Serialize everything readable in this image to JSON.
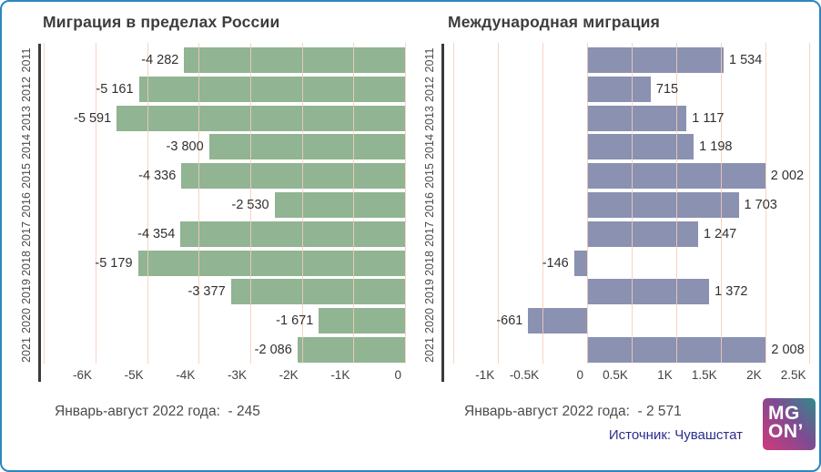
{
  "style": {
    "background": "#ffffff",
    "border_color": "#2e86c1",
    "grid_color": "#f6cdb9",
    "axis_spine_color": "#3a3a3a"
  },
  "chart_data": [
    {
      "type": "bar",
      "orientation": "horizontal",
      "title": "Миграция в пределах России",
      "categories": [
        "2011",
        "2012",
        "2013",
        "2014",
        "2015",
        "2016",
        "2017",
        "2018",
        "2019",
        "2020",
        "2021"
      ],
      "values": [
        -4282,
        -5161,
        -5591,
        -3800,
        -4336,
        -2530,
        -4354,
        -5179,
        -3377,
        -1671,
        -2086
      ],
      "value_labels": [
        "-4 282",
        "-5 161",
        "-5 591",
        "-3 800",
        "-4 336",
        "-2 530",
        "-4 354",
        "-5 179",
        "-3 377",
        "-1 671",
        "-2 086"
      ],
      "bar_color": "#91b492",
      "xlim": [
        -7059,
        0
      ],
      "grid": true,
      "ticks": [
        {
          "v": -7000,
          "label": ""
        },
        {
          "v": -6000,
          "label": "-6K"
        },
        {
          "v": -5000,
          "label": "-5K"
        },
        {
          "v": -4000,
          "label": "-4K"
        },
        {
          "v": -3000,
          "label": "-3K"
        },
        {
          "v": -2000,
          "label": "-2K"
        },
        {
          "v": -1000,
          "label": "-1K"
        },
        {
          "v": 0,
          "label": "0"
        }
      ],
      "caption": "Январь-август 2022 года:  - 245"
    },
    {
      "type": "bar",
      "orientation": "horizontal",
      "title": "Международная миграция",
      "categories": [
        "2011",
        "2012",
        "2013",
        "2014",
        "2015",
        "2016",
        "2017",
        "2018",
        "2019",
        "2020",
        "2021"
      ],
      "values": [
        1534,
        715,
        1117,
        1198,
        2002,
        1703,
        1247,
        -146,
        1372,
        -661,
        2008
      ],
      "value_labels": [
        "1 534",
        "715",
        "1 117",
        "1 198",
        "2 002",
        "1 703",
        "1 247",
        "-146",
        "1 372",
        "-661",
        "2 008"
      ],
      "bar_color": "#8a91b1",
      "xlim": [
        -1585,
        2495
      ],
      "grid": true,
      "ticks": [
        {
          "v": -1500,
          "label": ""
        },
        {
          "v": -1000,
          "label": "-1K"
        },
        {
          "v": -500,
          "label": "-0.5K"
        },
        {
          "v": 0,
          "label": "0"
        },
        {
          "v": 500,
          "label": "0.5K"
        },
        {
          "v": 1000,
          "label": "1K"
        },
        {
          "v": 1500,
          "label": "1.5K"
        },
        {
          "v": 2000,
          "label": "2K"
        },
        {
          "v": 2500,
          "label": "2.5K"
        }
      ],
      "caption": "Январь-август 2022 года:  - 2 571"
    }
  ],
  "footer": {
    "source": "Источник: Чувашстат",
    "source_color": "#2b2e8c",
    "logo": {
      "line1": "MG",
      "line2": "ON’",
      "color_teal": "#38848c",
      "color_purple": "#7e4b92",
      "color_magenta": "#c33c80"
    }
  }
}
